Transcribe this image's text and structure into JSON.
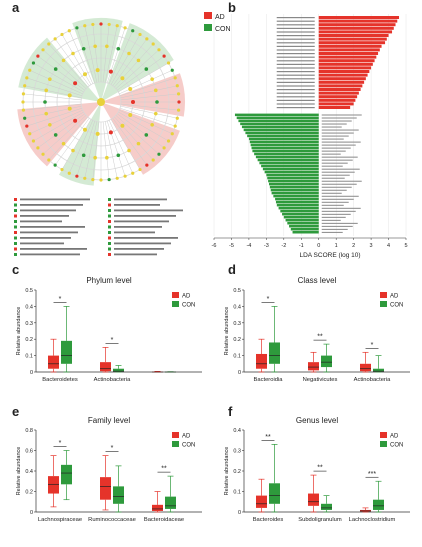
{
  "panel_labels": [
    "a",
    "b",
    "c",
    "d",
    "e",
    "f"
  ],
  "colors": {
    "AD": "#e5332a",
    "CON": "#2e9a3c",
    "node": "#e8d13a",
    "ring": "#d9d9d9"
  },
  "legend": {
    "ad": "AD",
    "con": "CON"
  },
  "lda": {
    "xlabel": "LDA SCORE (log 10)",
    "ticks": [
      "-6",
      "-5",
      "-4",
      "-3",
      "-2",
      "-1",
      "0",
      "1",
      "2",
      "3",
      "4",
      "5"
    ],
    "ad_values": [
      4.6,
      4.5,
      4.4,
      4.3,
      4.2,
      4.0,
      3.9,
      3.8,
      3.6,
      3.5,
      3.4,
      3.3,
      3.2,
      3.1,
      3.0,
      2.9,
      2.8,
      2.7,
      2.6,
      2.5,
      2.4,
      2.3,
      2.2,
      2.1,
      2.0,
      1.8
    ],
    "con_values": [
      -4.8,
      -4.7,
      -4.6,
      -4.5,
      -4.4,
      -4.3,
      -4.2,
      -4.1,
      -4.0,
      -3.95,
      -3.9,
      -3.85,
      -3.8,
      -3.7,
      -3.6,
      -3.5,
      -3.4,
      -3.3,
      -3.2,
      -3.1,
      -3.0,
      -2.95,
      -2.9,
      -2.85,
      -2.8,
      -2.75,
      -2.7,
      -2.6,
      -2.5,
      -2.45,
      -2.4,
      -2.3,
      -2.2,
      -2.1,
      -2.0,
      -1.9,
      -1.8,
      -1.7,
      -1.6,
      -1.5
    ]
  },
  "chart_data": [
    {
      "type": "box",
      "title": "Phylum level",
      "ylabel": "Relative abundance",
      "ylim": [
        0,
        0.5
      ],
      "yticks": [
        "0",
        "0.1",
        "0.2",
        "0.3",
        "0.4",
        "0.5"
      ],
      "categories": [
        "Bacteroidetes",
        "Actinobacteria",
        ""
      ],
      "sig": [
        "*",
        "*",
        ""
      ],
      "series": [
        {
          "name": "AD",
          "boxes": [
            [
              0,
              0.02,
              0.05,
              0.1,
              0.2
            ],
            [
              0,
              0.005,
              0.02,
              0.06,
              0.15
            ],
            [
              0,
              0,
              0,
              0.002,
              0.004
            ]
          ]
        },
        {
          "name": "CON",
          "boxes": [
            [
              0,
              0.05,
              0.1,
              0.19,
              0.4
            ],
            [
              0,
              0.002,
              0.005,
              0.02,
              0.04
            ],
            [
              0,
              0,
              0,
              0.001,
              0.002
            ]
          ]
        }
      ]
    },
    {
      "type": "box",
      "title": "Class level",
      "ylabel": "Relative abundance",
      "ylim": [
        0,
        0.5
      ],
      "yticks": [
        "0",
        "0.1",
        "0.2",
        "0.3",
        "0.4",
        "0.5"
      ],
      "categories": [
        "Bacteroidia",
        "Negativicutes",
        "Actinobacteria"
      ],
      "sig": [
        "*",
        "**",
        "*"
      ],
      "series": [
        {
          "name": "AD",
          "boxes": [
            [
              0,
              0.02,
              0.05,
              0.11,
              0.2
            ],
            [
              0,
              0.01,
              0.03,
              0.06,
              0.12
            ],
            [
              0,
              0.005,
              0.02,
              0.05,
              0.12
            ]
          ]
        },
        {
          "name": "CON",
          "boxes": [
            [
              0,
              0.05,
              0.1,
              0.18,
              0.4
            ],
            [
              0,
              0.03,
              0.06,
              0.1,
              0.17
            ],
            [
              0,
              0.002,
              0.005,
              0.02,
              0.1
            ]
          ]
        }
      ]
    },
    {
      "type": "box",
      "title": "Family level",
      "ylabel": "Relative abundance",
      "ylim": [
        0,
        0.8
      ],
      "yticks": [
        "0",
        "0.2",
        "0.4",
        "0.6",
        "0.8"
      ],
      "categories": [
        "Lachnospiraceae",
        "Ruminococcaceae",
        "Bacteroidaceae"
      ],
      "sig": [
        "*",
        "*",
        "**"
      ],
      "series": [
        {
          "name": "AD",
          "boxes": [
            [
              0.05,
              0.18,
              0.27,
              0.35,
              0.55
            ],
            [
              0.02,
              0.12,
              0.25,
              0.34,
              0.55
            ],
            [
              0,
              0.01,
              0.03,
              0.07,
              0.2
            ]
          ]
        },
        {
          "name": "CON",
          "boxes": [
            [
              0.12,
              0.27,
              0.38,
              0.46,
              0.6
            ],
            [
              0,
              0.08,
              0.15,
              0.25,
              0.45
            ],
            [
              0,
              0.03,
              0.06,
              0.15,
              0.35
            ]
          ]
        }
      ]
    },
    {
      "type": "box",
      "title": "Genus level",
      "ylabel": "Relative abundance",
      "ylim": [
        0,
        0.4
      ],
      "yticks": [
        "0",
        "0.1",
        "0.2",
        "0.3",
        "0.4"
      ],
      "categories": [
        "Bacteroides",
        "Subdoligranulum",
        "Lachnoclostridium"
      ],
      "sig": [
        "**",
        "**",
        "***"
      ],
      "series": [
        {
          "name": "AD",
          "boxes": [
            [
              0,
              0.02,
              0.04,
              0.08,
              0.16
            ],
            [
              0,
              0.03,
              0.05,
              0.09,
              0.18
            ],
            [
              0,
              0.002,
              0.005,
              0.01,
              0.02
            ]
          ]
        },
        {
          "name": "CON",
          "boxes": [
            [
              0,
              0.04,
              0.08,
              0.14,
              0.33
            ],
            [
              0,
              0.01,
              0.02,
              0.04,
              0.08
            ],
            [
              0,
              0.01,
              0.03,
              0.06,
              0.15
            ]
          ]
        }
      ]
    }
  ]
}
